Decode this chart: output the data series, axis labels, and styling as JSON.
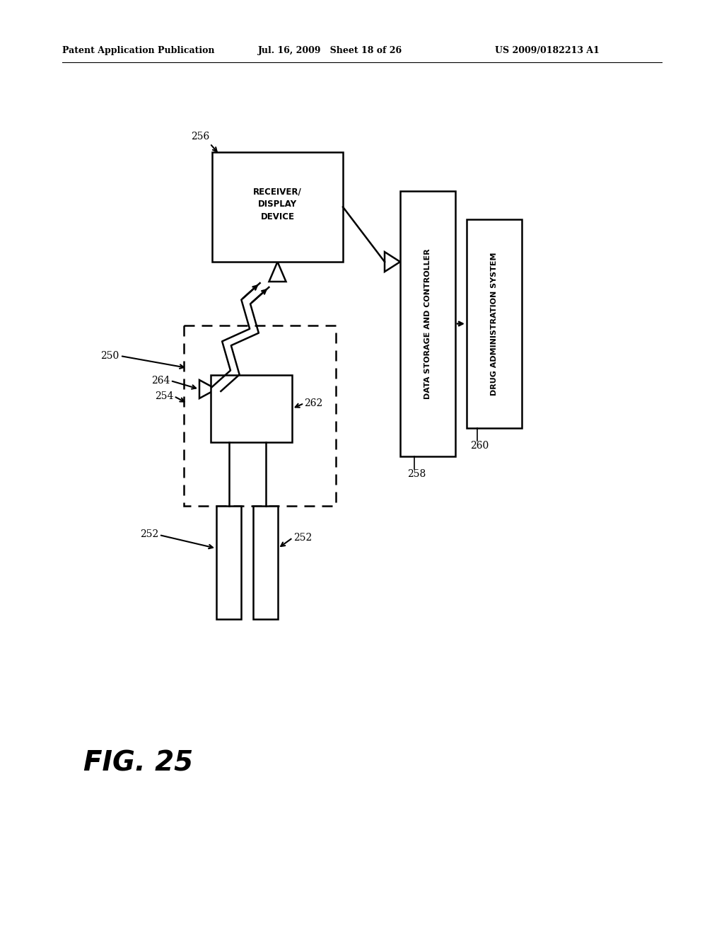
{
  "header_left": "Patent Application Publication",
  "header_mid": "Jul. 16, 2009   Sheet 18 of 26",
  "header_right": "US 2009/0182213 A1",
  "fig_label": "FIG. 25",
  "bg_color": "#ffffff",
  "line_color": "#333333",
  "gray_color": "#888888"
}
